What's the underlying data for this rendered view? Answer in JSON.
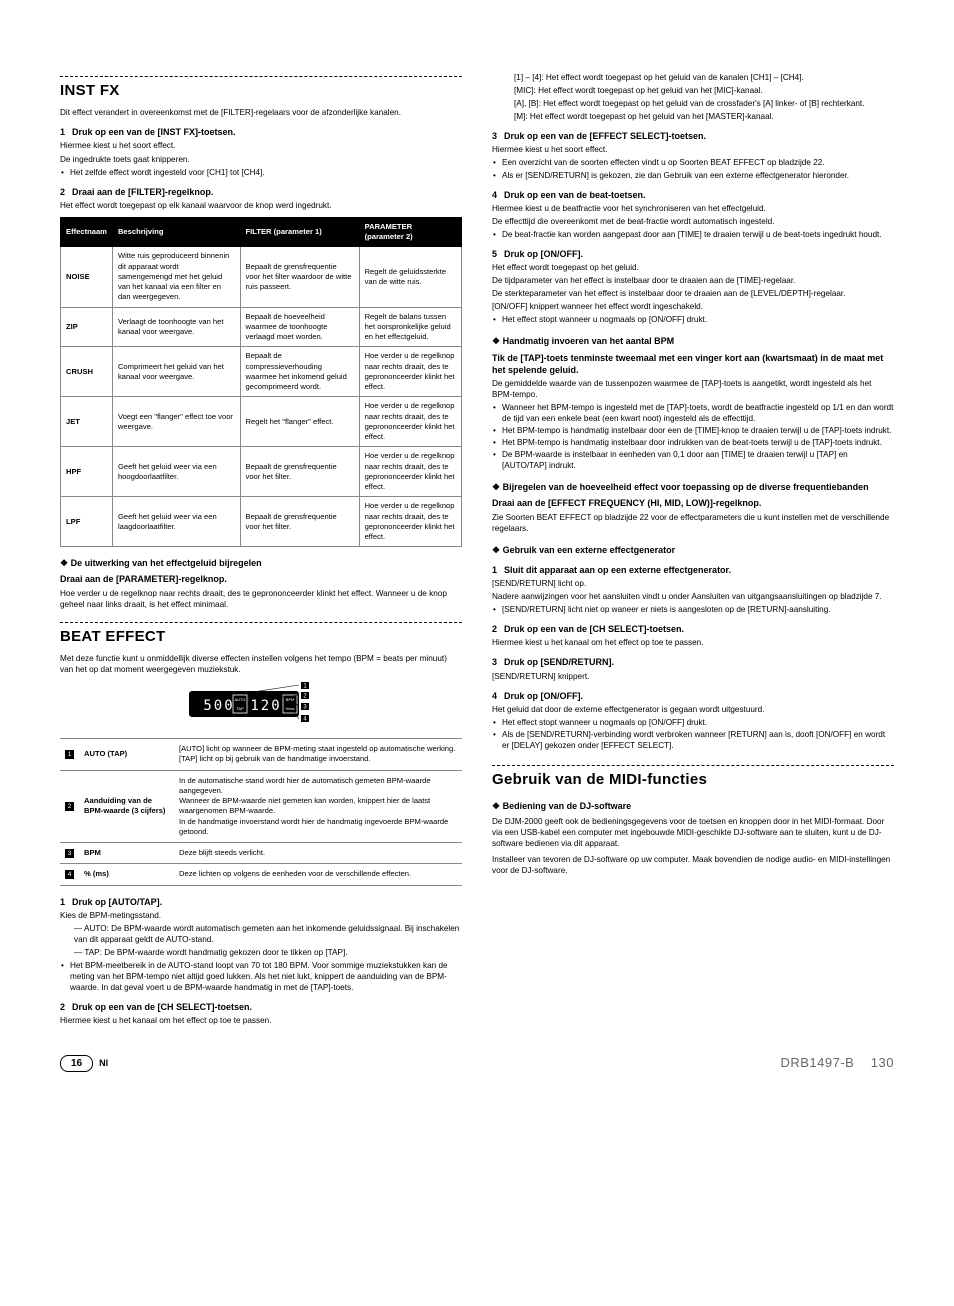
{
  "left": {
    "instfx": {
      "title": "INST FX",
      "intro": "Dit effect verandert in overeenkomst met de [FILTER]-regelaars voor de afzonderlijke kanalen.",
      "s1_h": "Druk op een van de [INST FX]-toetsen.",
      "s1_a": "Hiermee kiest u het soort effect.",
      "s1_b": "De ingedrukte toets gaat knipperen.",
      "s1_bul": "Het zelfde effect wordt ingesteld voor [CH1] tot [CH4].",
      "s2_h": "Draai aan de [FILTER]-regelknop.",
      "s2_a": "Het effect wordt toegepast op elk kanaal waarvoor de knop werd ingedrukt.",
      "th1": "Effectnaam",
      "th2": "Beschrijving",
      "th3": "FILTER (parameter 1)",
      "th4a": "PARAMETER",
      "th4b": "(parameter 2)",
      "rows": [
        {
          "n": "NOISE",
          "d": "Witte ruis geproduceerd binnenin dit apparaat wordt samengemengd met het geluid van het kanaal via een filter en dan weergegeven.",
          "f": "Bepaalt de grensfrequentie voor het filter waardoor de witte ruis passeert.",
          "p": "Regelt de geluidssterkte van de witte ruis."
        },
        {
          "n": "ZIP",
          "d": "Verlaagt de toonhoogte van het kanaal voor weergave.",
          "f": "Bepaalt de hoeveelheid waarmee de toonhoogte verlaagd moet worden.",
          "p": "Regelt de balans tussen het oorspronkelijke geluid en het effectgeluid."
        },
        {
          "n": "CRUSH",
          "d": "Comprimeert het geluid van het kanaal voor weergave.",
          "f": "Bepaalt de compressieverhouding waarmee het inkomend geluid gecomprimeerd wordt.",
          "p": "Hoe verder u de regelknop naar rechts draait, des te geprononceerder klinkt het effect."
        },
        {
          "n": "JET",
          "d": "Voegt een \"flanger\" effect toe voor weergave.",
          "f": "Regelt het \"flanger\" effect.",
          "p": "Hoe verder u de regelknop naar rechts draait, des te geprononceerder klinkt het effect."
        },
        {
          "n": "HPF",
          "d": "Geeft het geluid weer via een hoogdoorlaatfilter.",
          "f": "Bepaalt de grensfrequentie voor het filter.",
          "p": "Hoe verder u de regelknop naar rechts draait, des te geprononceerder klinkt het effect."
        },
        {
          "n": "LPF",
          "d": "Geeft het geluid weer via een laagdoorlaatfilter.",
          "f": "Bepaalt de grensfrequentie voor het filter.",
          "p": "Hoe verder u de regelknop naar rechts draait, des te geprononceerder klinkt het effect."
        }
      ],
      "sub1": "De uitwerking van het effectgeluid bijregelen",
      "sub1_h": "Draai aan de [PARAMETER]-regelknop.",
      "sub1_p": "Hoe verder u de regelknop naar rechts draait, des te geprononceerder klinkt het effect. Wanneer u de knop geheel naar links draait, is het effect minimaal."
    },
    "beat": {
      "title": "BEAT EFFECT",
      "intro": "Met deze functie kunt u onmiddellijk diverse effecten instellen volgens het tempo (BPM = beats per minuut) van het op dat moment weergegeven muziekstuk.",
      "disp": [
        {
          "i": "1",
          "l": "AUTO (TAP)",
          "d": "[AUTO] licht op wanneer de BPM-meting staat ingesteld op automatische werking.\n[TAP] licht op bij gebruik van de handmatige invoerstand."
        },
        {
          "i": "2",
          "l": "Aanduiding van de BPM-waarde (3 cijfers)",
          "d": "In de automatische stand wordt hier de automatisch gemeten BPM-waarde aangegeven.\nWanneer de BPM-waarde niet gemeten kan worden, knippert hier de laatst waargenomen BPM-waarde.\nIn de handmatige invoerstand wordt hier de handmatig ingevoerde BPM-waarde getoond."
        },
        {
          "i": "3",
          "l": "BPM",
          "d": "Deze blijft steeds verlicht."
        },
        {
          "i": "4",
          "l": "% (ms)",
          "d": "Deze lichten op volgens de eenheden voor de verschillende effecten."
        }
      ],
      "s1_h": "Druk op [AUTO/TAP].",
      "s1_a": "Kies de BPM-metingsstand.",
      "s1_auto": "AUTO: De BPM-waarde wordt automatisch gemeten aan het inkomende geluidssignaal. Bij inschakelen van dit apparaat geldt de AUTO-stand.",
      "s1_tap": "TAP: De BPM-waarde wordt handmatig gekozen door te tikken op [TAP].",
      "s1_bul": "Het BPM-meetbereik in de AUTO-stand loopt van 70 tot 180 BPM. Voor sommige muziekstukken kan de meting van het BPM-tempo niet altijd goed lukken. Als het niet lukt, knippert de aanduiding van de BPM-waarde. In dat geval voert u de BPM-waarde handmatig in met de [TAP]-toets.",
      "s2_h": "Druk op een van de [CH SELECT]-toetsen.",
      "s2_a": "Hiermee kiest u het kanaal om het effect op toe te passen."
    }
  },
  "right": {
    "top": {
      "l1": "[1] – [4]: Het effect wordt toegepast op het geluid van de kanalen [CH1] – [CH4].",
      "l2": "[MIC]: Het effect wordt toegepast op het geluid van het [MIC]-kanaal.",
      "l3": "[A], [B]: Het effect wordt toegepast op het geluid van de crossfader's [A] linker- of [B] rechterkant.",
      "l4": "[M]: Het effect wordt toegepast op het geluid van het [MASTER]-kanaal."
    },
    "s3_h": "Druk op een van de [EFFECT SELECT]-toetsen.",
    "s3_a": "Hiermee kiest u het soort effect.",
    "s3_b1": "Een overzicht van de soorten effecten vindt u op Soorten BEAT EFFECT op bladzijde 22.",
    "s3_b2": "Als er [SEND/RETURN] is gekozen, zie dan Gebruik van een externe effectgenerator hieronder.",
    "s4_h": "Druk op een van de beat-toetsen.",
    "s4_a": "Hiermee kiest u de beatfractie voor het synchroniseren van het effectgeluid.",
    "s4_b": "De effecttijd die overeenkomt met de beat-fractie wordt automatisch ingesteld.",
    "s4_bul": "De beat-fractie kan worden aangepast door aan [TIME] te draaien terwijl u de beat-toets ingedrukt houdt.",
    "s5_h": "Druk op [ON/OFF].",
    "s5_a": "Het effect wordt toegepast op het geluid.",
    "s5_b": "De tijdparameter van het effect is instelbaar door te draaien aan de [TIME]-regelaar.",
    "s5_c": "De sterkteparameter van het effect is instelbaar door te draaien aan de [LEVEL/DEPTH]-regelaar.",
    "s5_d": "[ON/OFF] knippert wanneer het effect wordt ingeschakeld.",
    "s5_bul": "Het effect stopt wanneer u nogmaals op [ON/OFF] drukt.",
    "bpm_h": "Handmatig invoeren van het aantal BPM",
    "bpm_t1": "Tik de [TAP]-toets tenminste tweemaal met een vinger kort aan (kwartsmaat) in de maat met het spelende geluid.",
    "bpm_p1": "De gemiddelde waarde van de tussenpozen waarmee de [TAP]-toets is aangetikt, wordt ingesteld als het BPM-tempo.",
    "bpm_b1": "Wanneer het BPM-tempo is ingesteld met de [TAP]-toets, wordt de beatfractie ingesteld op 1/1 en dan wordt de tijd van een enkele beat (een kwart noot) ingesteld als de effecttijd.",
    "bpm_b2": "Het BPM-tempo is handmatig instelbaar door een de [TIME]-knop te draaien terwijl u de [TAP]-toets indrukt.",
    "bpm_b3": "Het BPM-tempo is handmatig instelbaar door indrukken van de beat-toets terwijl u de [TAP]-toets indrukt.",
    "bpm_b4": "De BPM-waarde is instelbaar in eenheden van 0,1 door aan [TIME] te draaien terwijl u [TAP] en [AUTO/TAP] indrukt.",
    "freq_h": "Bijregelen van de hoeveelheid effect voor toepassing op de diverse frequentiebanden",
    "freq_t": "Draai aan de [EFFECT FREQUENCY (HI, MID, LOW)]-regelknop.",
    "freq_p": "Zie Soorten BEAT EFFECT op bladzijde 22 voor de effectparameters die u kunt instellen met de verschillende regelaars.",
    "ext_h": "Gebruik van een externe effectgenerator",
    "ext_s1_h": "Sluit dit apparaat aan op een externe effectgenerator.",
    "ext_s1_a": "[SEND/RETURN] licht op.",
    "ext_s1_b": "Nadere aanwijzingen voor het aansluiten vindt u onder Aansluiten van uitgangsaansluitingen op bladzijde 7.",
    "ext_s1_bul": "[SEND/RETURN] licht niet op waneer er niets is aangesloten op de [RETURN]-aansluiting.",
    "ext_s2_h": "Druk op een van de [CH SELECT]-toetsen.",
    "ext_s2_a": "Hiermee kiest u het kanaal om het effect op toe te passen.",
    "ext_s3_h": "Druk op [SEND/RETURN].",
    "ext_s3_a": "[SEND/RETURN] knippert.",
    "ext_s4_h": "Druk op [ON/OFF].",
    "ext_s4_a": "Het geluid dat door de externe effectgenerator is gegaan wordt uitgestuurd.",
    "ext_s4_b1": "Het effect stopt wanneer u nogmaals op [ON/OFF] drukt.",
    "ext_s4_b2": "Als de [SEND/RETURN]-verbinding wordt verbroken wanneer [RETURN] aan is, dooft [ON/OFF] en wordt er [DELAY] gekozen onder [EFFECT SELECT].",
    "midi_title": "Gebruik van de MIDI-functies",
    "midi_sub": "Bediening van de DJ-software",
    "midi_p1": "De DJM-2000 geeft ook de bedieningsgegevens voor de toetsen en knoppen door in het MIDI-formaat. Door via een USB-kabel een computer met ingebouwde MIDI-geschikte DJ-software aan te sluiten, kunt u de DJ-software bedienen via dit apparaat.",
    "midi_p2": "Installeer van tevoren de DJ-software op uw computer. Maak bovendien de nodige audio- en MIDI-instellingen voor de DJ-software."
  },
  "footer": {
    "page_local": "16",
    "lang": "Nl",
    "doc": "DRB1497-B",
    "page_global": "130"
  }
}
